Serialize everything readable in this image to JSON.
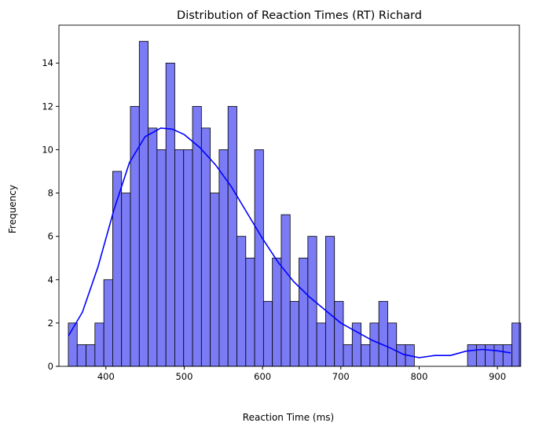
{
  "chart_data": {
    "type": "bar",
    "title": "Distribution of Reaction Times (RT) Richard",
    "xlabel": "Reaction Time (ms)",
    "ylabel": "Frequency",
    "xlim": [
      340,
      928
    ],
    "ylim": [
      0,
      15.75
    ],
    "xticks": [
      400,
      500,
      600,
      700,
      800,
      900
    ],
    "yticks": [
      0,
      2,
      4,
      6,
      8,
      10,
      12,
      14
    ],
    "grid": false,
    "bin_start": 352,
    "bin_width": 11.33,
    "values": [
      2,
      1,
      1,
      2,
      4,
      9,
      8,
      12,
      15,
      11,
      10,
      14,
      10,
      10,
      12,
      11,
      8,
      10,
      12,
      6,
      5,
      10,
      3,
      5,
      7,
      3,
      5,
      6,
      2,
      6,
      3,
      1,
      2,
      1,
      2,
      3,
      2,
      1,
      1,
      0,
      0,
      0,
      0,
      0,
      0,
      1,
      1,
      1,
      1,
      1,
      2
    ],
    "bar_color": "#7b7bf5",
    "bar_edge_color": "#000000",
    "kde": {
      "color": "#0000ff",
      "x": [
        352,
        370,
        390,
        410,
        430,
        450,
        470,
        485,
        500,
        520,
        540,
        560,
        580,
        600,
        620,
        640,
        660,
        680,
        700,
        720,
        740,
        760,
        780,
        800,
        820,
        840,
        860,
        880,
        900,
        917
      ],
      "y": [
        1.4,
        2.5,
        4.6,
        7.2,
        9.4,
        10.6,
        11.0,
        10.95,
        10.7,
        10.1,
        9.3,
        8.3,
        7.1,
        5.9,
        4.8,
        3.9,
        3.2,
        2.6,
        2.0,
        1.6,
        1.2,
        0.9,
        0.55,
        0.4,
        0.5,
        0.5,
        0.7,
        0.78,
        0.72,
        0.62
      ]
    }
  }
}
